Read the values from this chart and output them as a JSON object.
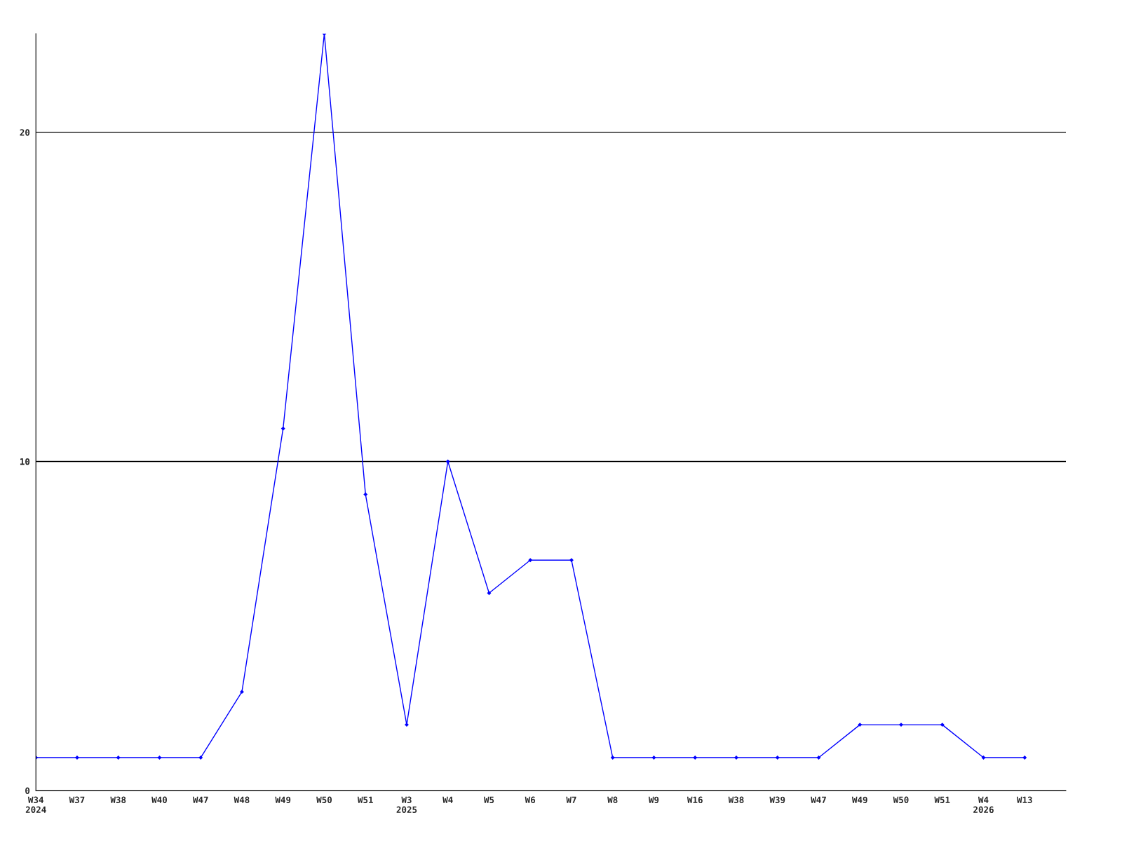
{
  "chart_data": {
    "type": "line",
    "categories": [
      "W34\n2024",
      "W37",
      "W38",
      "W40",
      "W47",
      "W48",
      "W49",
      "W50",
      "W51",
      "W3\n2025",
      "W4",
      "W5",
      "W6",
      "W7",
      "W8",
      "W9",
      "W16",
      "W38",
      "W39",
      "W47",
      "W49",
      "W50",
      "W51",
      "W4\n2026",
      "W13"
    ],
    "series": [
      {
        "color": "#0000ff",
        "values": [
          1,
          1,
          1,
          1,
          1,
          3,
          11,
          23,
          9,
          2,
          10,
          6,
          7,
          7,
          1,
          1,
          1,
          1,
          1,
          1,
          2,
          2,
          2,
          1,
          1
        ]
      }
    ],
    "ylim": [
      0,
      23
    ],
    "yticks": [
      0,
      10,
      20
    ],
    "grid": "y",
    "marker": "diamond",
    "line_style": "solid"
  }
}
